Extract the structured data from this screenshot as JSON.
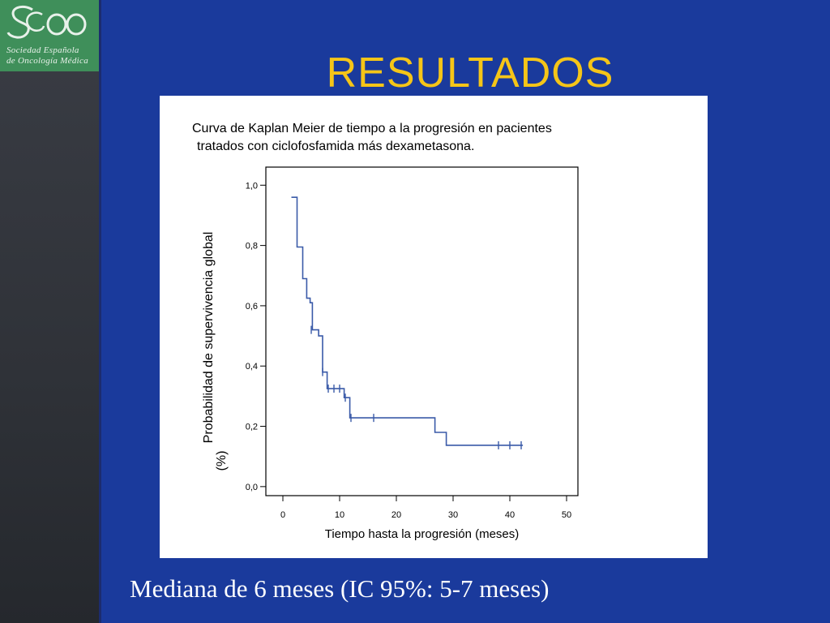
{
  "slide": {
    "title": "RESULTADOS",
    "footer": "Mediana de 6 meses (IC 95%: 5-7 meses)"
  },
  "logo": {
    "mark": "SEOM",
    "line1": "Sociedad Española",
    "line2": "de Oncología Médica"
  },
  "colors": {
    "background": "#1a3a9c",
    "title": "#f5c518",
    "curve": "#3a5aa8",
    "logo_green": "#3f8f5a"
  },
  "chart_data": {
    "type": "line",
    "subtype": "kaplan-meier-step",
    "title_line1": "Curva de Kaplan Meier de tiempo a la progresión  en pacientes",
    "title_line2": "tratados con ciclofosfamida más dexametasona.",
    "xlabel": "Tiempo hasta la progresión (meses)",
    "ylabel_line1": "Probabilidad de supervivencia  global",
    "ylabel_line2": "(%)",
    "xlim": [
      -3,
      52
    ],
    "ylim": [
      -0.03,
      1.06
    ],
    "x_ticks": [
      0,
      10,
      20,
      30,
      40,
      50
    ],
    "x_tick_labels": [
      "0",
      "10",
      "20",
      "30",
      "40",
      "50"
    ],
    "y_ticks": [
      0.0,
      0.2,
      0.4,
      0.6,
      0.8,
      1.0
    ],
    "y_tick_labels": [
      "0,0",
      "0,2",
      "0,4",
      "0,6",
      "0,8",
      "1,0"
    ],
    "grid": false,
    "series": [
      {
        "steps": [
          [
            1.5,
            0.96
          ],
          [
            2.5,
            0.96
          ],
          [
            2.5,
            0.795
          ],
          [
            3.5,
            0.795
          ],
          [
            3.5,
            0.69
          ],
          [
            4.2,
            0.69
          ],
          [
            4.2,
            0.625
          ],
          [
            4.8,
            0.625
          ],
          [
            4.8,
            0.61
          ],
          [
            5.2,
            0.61
          ],
          [
            5.2,
            0.52
          ],
          [
            6.3,
            0.52
          ],
          [
            6.3,
            0.5
          ],
          [
            7.0,
            0.5
          ],
          [
            7.0,
            0.38
          ],
          [
            7.8,
            0.38
          ],
          [
            7.8,
            0.325
          ],
          [
            10.8,
            0.325
          ],
          [
            10.8,
            0.295
          ],
          [
            11.8,
            0.295
          ],
          [
            11.8,
            0.228
          ],
          [
            26.8,
            0.228
          ],
          [
            26.8,
            0.18
          ],
          [
            28.8,
            0.18
          ],
          [
            28.8,
            0.137
          ],
          [
            42.3,
            0.137
          ]
        ],
        "censored": [
          [
            5.0,
            0.52
          ],
          [
            7.0,
            0.38
          ],
          [
            8.0,
            0.325
          ],
          [
            9.0,
            0.325
          ],
          [
            10.0,
            0.325
          ],
          [
            11.0,
            0.295
          ],
          [
            12.0,
            0.228
          ],
          [
            16.0,
            0.228
          ],
          [
            38.0,
            0.137
          ],
          [
            40.0,
            0.137
          ],
          [
            42.0,
            0.137
          ]
        ]
      }
    ]
  }
}
